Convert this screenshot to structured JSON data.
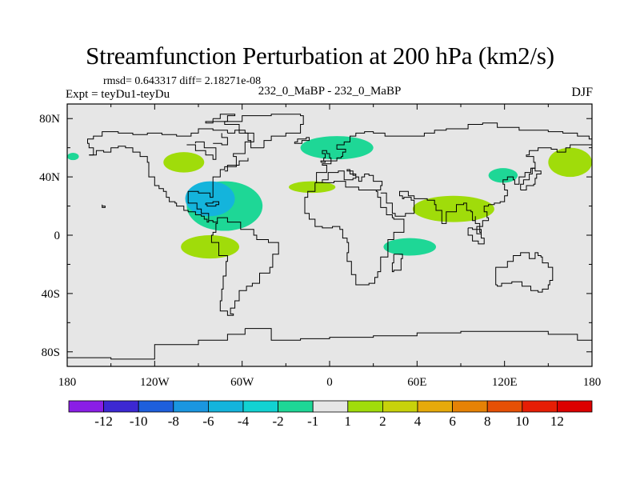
{
  "title": "Streamfunction Perturbation at 200 hPa (km2/s)",
  "stats_text": "rmsd= 0.643317  diff= 2.18271e-08",
  "left_label": "Expt = teyDu1-teyDu",
  "center_label": "232_0_MaBP - 232_0_MaBP",
  "right_label": "DJF",
  "chart_data": {
    "type": "heatmap",
    "projection": "cylindrical-equidistant",
    "xlim": [
      -180,
      180
    ],
    "ylim": [
      -90,
      90
    ],
    "x_ticks": [
      {
        "value": -180,
        "label": "180"
      },
      {
        "value": -120,
        "label": "120W"
      },
      {
        "value": -60,
        "label": "60W"
      },
      {
        "value": 0,
        "label": "0"
      },
      {
        "value": 60,
        "label": "60E"
      },
      {
        "value": 120,
        "label": "120E"
      },
      {
        "value": 180,
        "label": "180"
      }
    ],
    "y_ticks": [
      {
        "value": 80,
        "label": "80N"
      },
      {
        "value": 40,
        "label": "40N"
      },
      {
        "value": 0,
        "label": "0"
      },
      {
        "value": -40,
        "label": "40S"
      },
      {
        "value": -80,
        "label": "80S"
      }
    ],
    "colorbar": {
      "labels": [
        "-12",
        "-10",
        "-8",
        "-6",
        "-4",
        "-2",
        "-1",
        "1",
        "2",
        "4",
        "6",
        "8",
        "10",
        "12"
      ],
      "colors": [
        "#8a1ee6",
        "#3c28d2",
        "#1e5fdc",
        "#1a96e0",
        "#14b4dc",
        "#12d2d2",
        "#1ed796",
        "#e6e6e6",
        "#a0dc0a",
        "#c8d20a",
        "#e6aa0a",
        "#e68205",
        "#e65005",
        "#e61e05",
        "#dc0000"
      ]
    },
    "background_color": "#e6e6e6",
    "anomaly_regions": [
      {
        "lon": -176,
        "lat": 54,
        "dlon": 4,
        "dlat": 2.5,
        "value": -1.5,
        "color": "#1ed796"
      },
      {
        "lon": -100,
        "lat": 50,
        "dlon": 14,
        "dlat": 7,
        "value": 1.5,
        "color": "#a0dc0a"
      },
      {
        "lon": -72,
        "lat": 20,
        "dlon": 26,
        "dlat": 17,
        "value": -1.5,
        "color": "#1ed796"
      },
      {
        "lon": -82,
        "lat": 25,
        "dlon": 17,
        "dlat": 12,
        "value": -3,
        "color": "#14b4dc"
      },
      {
        "lon": -82,
        "lat": -8,
        "dlon": 20,
        "dlat": 8,
        "value": 1.5,
        "color": "#a0dc0a"
      },
      {
        "lon": -12,
        "lat": 33,
        "dlon": 16,
        "dlat": 4,
        "value": 1.5,
        "color": "#a0dc0a"
      },
      {
        "lon": 5,
        "lat": 60,
        "dlon": 25,
        "dlat": 8,
        "value": -1.5,
        "color": "#1ed796"
      },
      {
        "lon": 85,
        "lat": 18,
        "dlon": 28,
        "dlat": 9,
        "value": 1.5,
        "color": "#a0dc0a"
      },
      {
        "lon": 55,
        "lat": -8,
        "dlon": 18,
        "dlat": 6,
        "value": -1.5,
        "color": "#1ed796"
      },
      {
        "lon": 119,
        "lat": 41,
        "dlon": 10,
        "dlat": 5,
        "value": -1.5,
        "color": "#1ed796"
      },
      {
        "lon": 165,
        "lat": 50,
        "dlon": 15,
        "dlat": 10,
        "value": 1.5,
        "color": "#a0dc0a"
      }
    ]
  }
}
